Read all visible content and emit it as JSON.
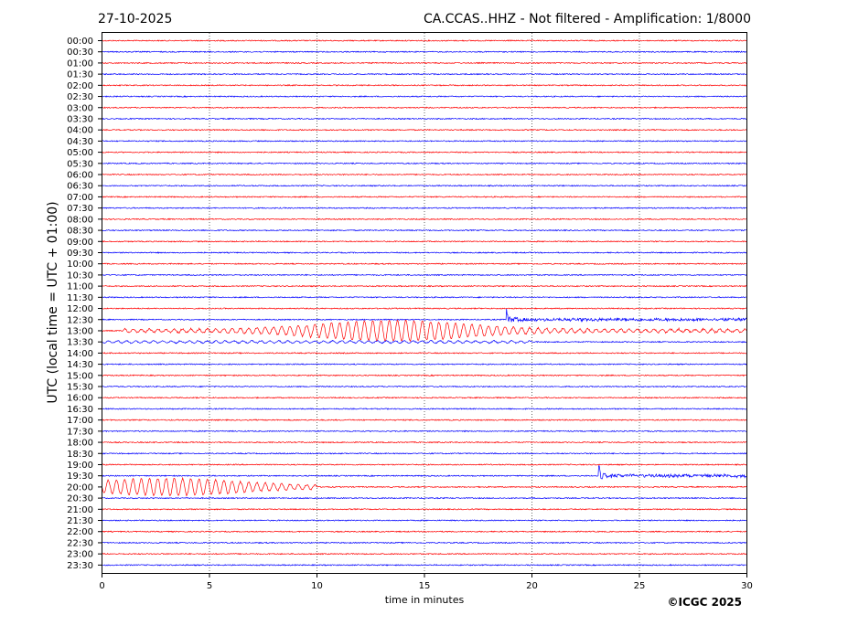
{
  "header": {
    "date": "27-10-2025",
    "station_title": "CA.CCAS..HHZ - Not filtered - Amplification: 1/8000"
  },
  "footer": {
    "copyright": "©ICGC 2025"
  },
  "chart_data": {
    "type": "line",
    "xlabel": "time in minutes",
    "ylabel": "UTC (local time = UTC + 01:00)",
    "xlim": [
      0,
      30
    ],
    "x_ticks": [
      0,
      5,
      10,
      15,
      20,
      25,
      30
    ],
    "grid": "vertical dotted at x ticks",
    "trace_colors": [
      "#ff0000",
      "#0000ff"
    ],
    "rows": [
      "00:00",
      "00:30",
      "01:00",
      "01:30",
      "02:00",
      "02:30",
      "03:00",
      "03:30",
      "04:00",
      "04:30",
      "05:00",
      "05:30",
      "06:00",
      "06:30",
      "07:00",
      "07:30",
      "08:00",
      "08:30",
      "09:00",
      "09:30",
      "10:00",
      "10:30",
      "11:00",
      "11:30",
      "12:00",
      "12:30",
      "13:00",
      "13:30",
      "14:00",
      "14:30",
      "15:00",
      "15:30",
      "16:00",
      "16:30",
      "17:00",
      "17:30",
      "18:00",
      "18:30",
      "19:00",
      "19:30",
      "20:00",
      "20:30",
      "21:00",
      "21:30",
      "22:00",
      "22:30",
      "23:00",
      "23:30"
    ],
    "events": [
      {
        "row": "12:30",
        "start_min": 18.8,
        "end_min": 30,
        "type": "noise_burst"
      },
      {
        "row": "13:00",
        "start_min": 1.0,
        "end_min": 30,
        "peak_min": 13.5,
        "type": "long_period_wave"
      },
      {
        "row": "13:30",
        "start_min": 0,
        "end_min": 20,
        "type": "long_period_wave_weak"
      },
      {
        "row": "19:30",
        "start_min": 23.1,
        "end_min": 30,
        "type": "noise_burst"
      },
      {
        "row": "20:00",
        "start_min": 0,
        "end_min": 10,
        "peak_min": 3.0,
        "type": "long_period_wave"
      }
    ]
  }
}
